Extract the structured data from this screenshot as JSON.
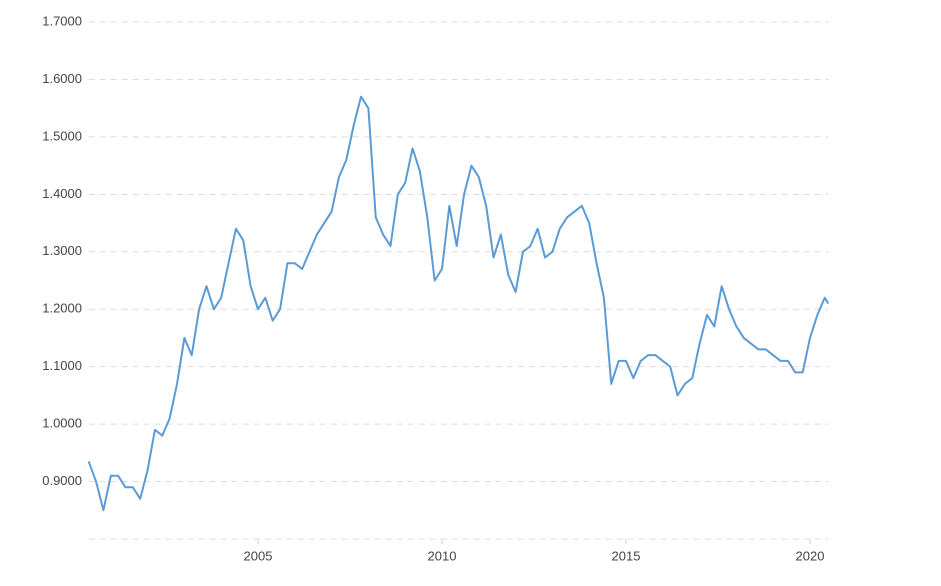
{
  "chart_data": {
    "type": "line",
    "x": [
      2000.4,
      2000.6,
      2000.8,
      2001.0,
      2001.2,
      2001.4,
      2001.6,
      2001.8,
      2002.0,
      2002.2,
      2002.4,
      2002.6,
      2002.8,
      2003.0,
      2003.2,
      2003.4,
      2003.6,
      2003.8,
      2004.0,
      2004.2,
      2004.4,
      2004.6,
      2004.8,
      2005.0,
      2005.2,
      2005.4,
      2005.6,
      2005.8,
      2006.0,
      2006.2,
      2006.4,
      2006.6,
      2006.8,
      2007.0,
      2007.2,
      2007.4,
      2007.6,
      2007.8,
      2008.0,
      2008.2,
      2008.4,
      2008.6,
      2008.8,
      2009.0,
      2009.2,
      2009.4,
      2009.6,
      2009.8,
      2010.0,
      2010.2,
      2010.4,
      2010.6,
      2010.8,
      2011.0,
      2011.2,
      2011.4,
      2011.6,
      2011.8,
      2012.0,
      2012.2,
      2012.4,
      2012.6,
      2012.8,
      2013.0,
      2013.2,
      2013.4,
      2013.6,
      2013.8,
      2014.0,
      2014.2,
      2014.4,
      2014.6,
      2014.8,
      2015.0,
      2015.2,
      2015.4,
      2015.6,
      2015.8,
      2016.0,
      2016.2,
      2016.4,
      2016.6,
      2016.8,
      2017.0,
      2017.2,
      2017.4,
      2017.6,
      2017.8,
      2018.0,
      2018.2,
      2018.4,
      2018.6,
      2018.8,
      2019.0,
      2019.2,
      2019.4,
      2019.6,
      2019.8,
      2020.0,
      2020.2,
      2020.4,
      2020.5
    ],
    "series": [
      {
        "color": "#5b9bd5",
        "values": [
          0.935,
          0.9,
          0.85,
          0.91,
          0.91,
          0.89,
          0.89,
          0.87,
          0.92,
          0.99,
          0.98,
          1.01,
          1.07,
          1.15,
          1.12,
          1.2,
          1.24,
          1.2,
          1.22,
          1.28,
          1.34,
          1.32,
          1.24,
          1.2,
          1.22,
          1.18,
          1.2,
          1.28,
          1.28,
          1.27,
          1.3,
          1.33,
          1.35,
          1.37,
          1.43,
          1.46,
          1.52,
          1.57,
          1.55,
          1.36,
          1.33,
          1.31,
          1.4,
          1.42,
          1.48,
          1.44,
          1.36,
          1.25,
          1.27,
          1.38,
          1.31,
          1.4,
          1.45,
          1.43,
          1.38,
          1.29,
          1.33,
          1.26,
          1.23,
          1.3,
          1.31,
          1.34,
          1.29,
          1.3,
          1.34,
          1.36,
          1.37,
          1.38,
          1.35,
          1.28,
          1.22,
          1.07,
          1.11,
          1.11,
          1.08,
          1.11,
          1.12,
          1.12,
          1.11,
          1.1,
          1.05,
          1.07,
          1.08,
          1.14,
          1.19,
          1.17,
          1.24,
          1.2,
          1.17,
          1.15,
          1.14,
          1.13,
          1.13,
          1.12,
          1.11,
          1.11,
          1.09,
          1.09,
          1.15,
          1.19,
          1.22,
          1.21
        ]
      }
    ],
    "xlim": [
      2000.4,
      2020.5
    ],
    "xticks": [
      2005,
      2010,
      2015,
      2020
    ],
    "ylim": [
      0.8,
      1.7
    ],
    "yticks": [
      {
        "value": 0.9,
        "label": "0.9000"
      },
      {
        "value": 1.0,
        "label": "1.0000"
      },
      {
        "value": 1.1,
        "label": "1.1000"
      },
      {
        "value": 1.2,
        "label": "1.2000"
      },
      {
        "value": 1.3,
        "label": "1.3000"
      },
      {
        "value": 1.4,
        "label": "1.4000"
      },
      {
        "value": 1.5,
        "label": "1.5000"
      },
      {
        "value": 1.6,
        "label": "1.6000"
      },
      {
        "value": 1.7,
        "label": "1.7000"
      }
    ],
    "grid": true
  }
}
